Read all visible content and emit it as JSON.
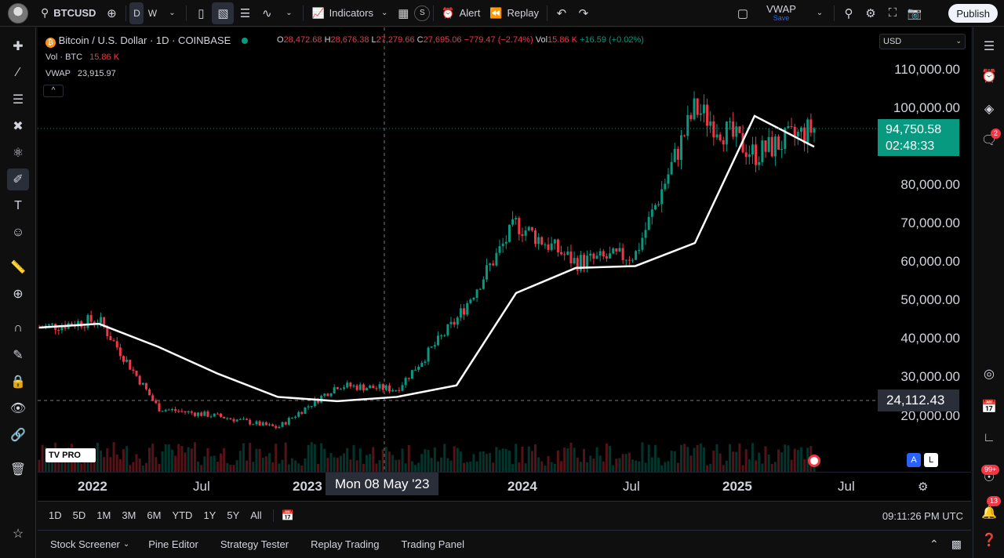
{
  "topbar": {
    "symbol": "BTCUSD",
    "interval_d": "D",
    "interval_w": "W",
    "indicators": "Indicators",
    "alert": "Alert",
    "replay": "Replay",
    "layout_name": "VWAP",
    "layout_status": "Save",
    "publish": "Publish"
  },
  "legend": {
    "title": "Bitcoin / U.S. Dollar · 1D · COINBASE",
    "o_label": "O",
    "o_val": "28,472.68",
    "h_label": "H",
    "h_val": "28,676.38",
    "l_label": "L",
    "l_val": "27,279.66",
    "c_label": "C",
    "c_val": "27,695.06",
    "change": "−779.47 (−2.74%)",
    "vol_label": "Vol",
    "vol_val": "15.86 K",
    "vol_change": "+16.59 (+0.02%)",
    "vol_row_label": "Vol · BTC",
    "vol_row_val": "15.86 K",
    "vwap_label": "VWAP",
    "vwap_val": "23,915.97",
    "collapse": "^"
  },
  "currency": "USD",
  "yaxis": [
    "110,000.00",
    "100,000.00",
    "80,000.00",
    "70,000.00",
    "60,000.00",
    "50,000.00",
    "40,000.00",
    "30,000.00",
    "20,000.00"
  ],
  "price": {
    "value": "94,750.58",
    "countdown": "02:48:33"
  },
  "crosshair_price": "24,112.43",
  "crosshair_date": "Mon 08 May '23",
  "xaxis": {
    "y2022": "2022",
    "jul1": "Jul",
    "y2023": "2023",
    "y2024": "2024",
    "jul2": "Jul",
    "y2025": "2025",
    "jul3": "Jul"
  },
  "ranges": [
    "1D",
    "5D",
    "1M",
    "3M",
    "6M",
    "YTD",
    "1Y",
    "5Y",
    "All"
  ],
  "clock": "09:11:26 PM UTC",
  "bottom_tabs": [
    "Stock Screener",
    "Pine Editor",
    "Strategy Tester",
    "Replay Trading",
    "Trading Panel"
  ],
  "badges": {
    "chat": "2",
    "notif1": "99+",
    "notif2": "13"
  },
  "watermark": "TV PRO",
  "scale_a": "A",
  "scale_l": "L",
  "colors": {
    "up": "#089981",
    "down": "#f23645",
    "vwap": "#ffffff",
    "bg": "#000000"
  },
  "chart_data": {
    "type": "line",
    "x": [
      "2022-01",
      "2022-04",
      "2022-07",
      "2022-10",
      "2023-01",
      "2023-05",
      "2023-09",
      "2024-01",
      "2024-04",
      "2024-07",
      "2024-10",
      "2025-01",
      "2025-03",
      "2025-04"
    ],
    "series": [
      {
        "name": "BTCUSD",
        "values": [
          43000,
          45000,
          22000,
          20000,
          17000,
          28000,
          27000,
          45000,
          70000,
          60000,
          62000,
          100000,
          88000,
          94750
        ]
      },
      {
        "name": "VWAP",
        "values": [
          43000,
          44000,
          38000,
          31000,
          25000,
          23900,
          25000,
          28000,
          52000,
          58500,
          59000,
          65000,
          98000,
          90000
        ]
      }
    ],
    "ylim": [
      10000,
      115000
    ]
  }
}
